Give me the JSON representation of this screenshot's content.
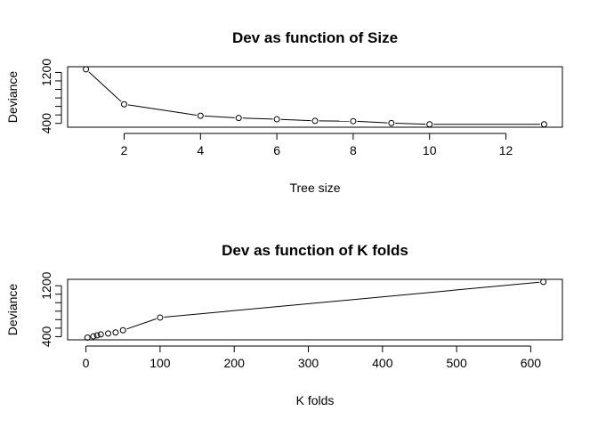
{
  "chart_data": [
    {
      "type": "line",
      "title": "Dev as function of Size",
      "xlabel": "Tree size",
      "ylabel": "Deviance",
      "xlim": [
        0.52,
        13.48
      ],
      "ylim": [
        340,
        1290
      ],
      "x_ticks": [
        2,
        4,
        6,
        8,
        10,
        12
      ],
      "y_ticks": [
        400,
        1200
      ],
      "y_minor_ticks": [
        400,
        533,
        667,
        800,
        933,
        1067,
        1200
      ],
      "x": [
        1,
        2,
        4,
        5,
        6,
        7,
        8,
        9,
        10,
        13
      ],
      "y": [
        1250,
        700,
        520,
        485,
        465,
        440,
        435,
        405,
        385,
        385
      ],
      "markers": "open-circle",
      "grid": false
    },
    {
      "type": "line",
      "title": "Dev as function of K folds",
      "xlabel": "K folds",
      "ylabel": "Deviance",
      "xlim": [
        -24.7,
        642.7
      ],
      "ylim": [
        350,
        1300
      ],
      "x_ticks": [
        0,
        100,
        200,
        300,
        400,
        500,
        600
      ],
      "y_ticks": [
        400,
        1200
      ],
      "y_minor_ticks": [
        400,
        533,
        667,
        800,
        933,
        1067,
        1200
      ],
      "x": [
        2,
        10,
        15,
        20,
        30,
        40,
        50,
        100,
        617
      ],
      "y": [
        385,
        405,
        420,
        435,
        450,
        465,
        500,
        700,
        1260
      ],
      "markers": "open-circle",
      "grid": false
    }
  ]
}
